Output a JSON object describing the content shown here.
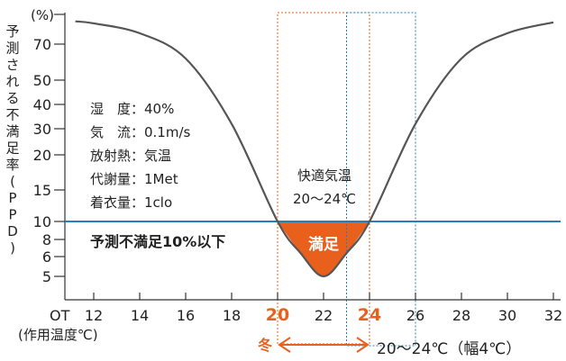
{
  "chart_data": {
    "type": "line",
    "ylabel": "予測される不満足率（PPD）",
    "y_unit": "(%)",
    "xlabel_prefix": "OT",
    "xlabel": "(作用温度℃)",
    "x_ticks": [
      12,
      14,
      16,
      18,
      20,
      22,
      24,
      26,
      28,
      30,
      32
    ],
    "x_highlight_ticks": [
      20,
      24
    ],
    "y_ticks": [
      5,
      6,
      8,
      10,
      15,
      20,
      30,
      40,
      50,
      70
    ],
    "xlim": [
      11.2,
      32.2
    ],
    "series": [
      {
        "curve": [
          [
            11.2,
            93
          ],
          [
            12,
            91
          ],
          [
            14,
            81
          ],
          [
            16,
            62
          ],
          [
            18,
            32
          ],
          [
            20,
            10
          ],
          [
            21,
            6.4
          ],
          [
            22,
            5
          ],
          [
            23,
            6.4
          ],
          [
            24,
            10
          ],
          [
            26,
            32
          ],
          [
            28,
            62
          ],
          [
            30,
            81
          ],
          [
            32,
            92
          ]
        ]
      }
    ],
    "threshold": {
      "y": 10,
      "label": "予測不満足10%以下"
    },
    "comfort_zone": {
      "x_range": [
        20,
        24
      ],
      "label": "満足",
      "color": "#e8601c"
    },
    "comfort_caption": [
      "快適気温",
      "20〜24℃"
    ],
    "winter_range": {
      "x_range": [
        20,
        24
      ],
      "season_label": "冬",
      "range_label": "20〜24℃（幅4℃）",
      "color": "#e8601c"
    },
    "blue_range_box": {
      "x_range": [
        23,
        26
      ]
    },
    "conditions": [
      "湿　度：40%",
      "気　流：0.1m/s",
      "放射熱：気温",
      "代謝量：1Met",
      "着衣量：1clo"
    ],
    "colors": {
      "curve": "#555555",
      "threshold_line": "#2680b8",
      "accent": "#e8601c",
      "blue_box": "#2680b8"
    }
  }
}
